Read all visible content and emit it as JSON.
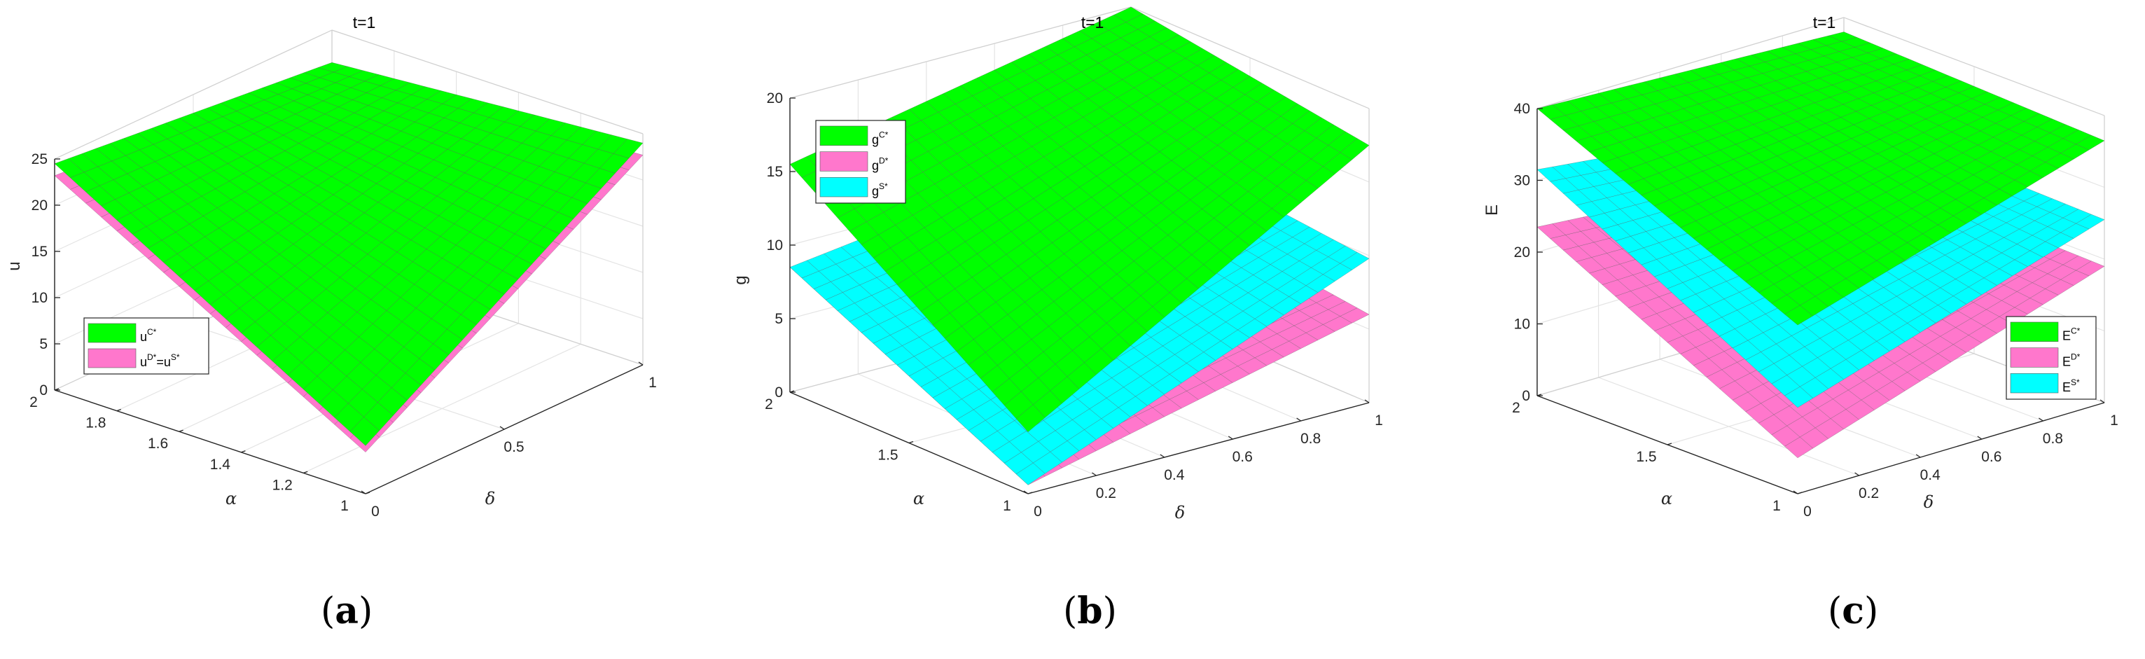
{
  "chart_data": [
    {
      "type": "surface",
      "caption": "(a)",
      "title": "t=1",
      "zlabel": "u",
      "ylabel": "α",
      "xlabel": "δ",
      "z_ticks": [
        "0",
        "5",
        "10",
        "15",
        "20",
        "25"
      ],
      "alpha_ticks": [
        "1",
        "1.2",
        "1.4",
        "1.6",
        "1.8",
        "2"
      ],
      "delta_ticks": [
        "0",
        "0.5",
        "1"
      ],
      "zlim": [
        0,
        25
      ],
      "alpha_range": [
        1,
        2
      ],
      "delta_range": [
        0,
        1
      ],
      "legend": {
        "position": "left-middle",
        "entries": [
          {
            "base": "u",
            "sup": "C*",
            "color": "#00ff00"
          },
          {
            "base": "u",
            "sup": "D*",
            "mid": "=u",
            "sup2": "S*",
            "color": "#ff77cc"
          }
        ]
      },
      "series": [
        {
          "name": "C",
          "color": "#00ff00",
          "corners": {
            "d0_a1": 5.2,
            "d1_a1": 24.0,
            "d0_a2": 24.5,
            "d1_a2": 21.5
          }
        },
        {
          "name": "D=S",
          "color": "#ff77cc",
          "corners": {
            "d0_a1": 4.5,
            "d1_a1": 22.7,
            "d0_a2": 23.2,
            "d1_a2": 20.8
          }
        }
      ]
    },
    {
      "type": "surface",
      "caption": "(b)",
      "title": "t=1",
      "zlabel": "g",
      "ylabel": "α",
      "xlabel": "δ",
      "z_ticks": [
        "0",
        "5",
        "10",
        "15",
        "20"
      ],
      "alpha_ticks": [
        "1",
        "1.5",
        "2"
      ],
      "delta_ticks": [
        "0",
        "0.2",
        "0.4",
        "0.6",
        "0.8",
        "1"
      ],
      "zlim": [
        0,
        20
      ],
      "alpha_range": [
        1,
        2
      ],
      "delta_range": [
        0,
        1
      ],
      "legend": {
        "position": "top-left",
        "entries": [
          {
            "base": "g",
            "sup": "C*",
            "color": "#00ff00"
          },
          {
            "base": "g",
            "sup": "D*",
            "color": "#ff77cc"
          },
          {
            "base": "g",
            "sup": "S*",
            "color": "#00ffff"
          }
        ]
      },
      "series": [
        {
          "name": "C",
          "color": "#00ff00",
          "corners": {
            "d0_a1": 4.2,
            "d1_a1": 17.5,
            "d0_a2": 15.5,
            "d1_a2": 20.0
          }
        },
        {
          "name": "S",
          "color": "#00ffff",
          "corners": {
            "d0_a1": 0.6,
            "d1_a1": 9.8,
            "d0_a2": 8.5,
            "d1_a2": 11.5
          }
        },
        {
          "name": "D",
          "color": "#ff77cc",
          "corners": {
            "d0_a1": 0.6,
            "d1_a1": 6.0,
            "d0_a2": 8.5,
            "d1_a2": 8.0
          }
        }
      ]
    },
    {
      "type": "surface",
      "caption": "(c)",
      "title": "t=1",
      "zlabel": "E",
      "ylabel": "α",
      "xlabel": "δ",
      "z_ticks": [
        "0",
        "10",
        "20",
        "30",
        "40"
      ],
      "alpha_ticks": [
        "1",
        "1.5",
        "2"
      ],
      "delta_ticks": [
        "0",
        "0.2",
        "0.4",
        "0.6",
        "0.8",
        "1"
      ],
      "zlim": [
        0,
        40
      ],
      "alpha_range": [
        1,
        2
      ],
      "delta_range": [
        0,
        1
      ],
      "legend": {
        "position": "bottom-right",
        "entries": [
          {
            "base": "E",
            "sup": "C*",
            "color": "#00ff00"
          },
          {
            "base": "E",
            "sup": "D*",
            "color": "#ff77cc"
          },
          {
            "base": "E",
            "sup": "S*",
            "color": "#00ffff"
          }
        ]
      },
      "series": [
        {
          "name": "C",
          "color": "#00ff00",
          "corners": {
            "d0_a1": 23.5,
            "d1_a1": 36.5,
            "d0_a2": 40.0,
            "d1_a2": 38.0
          }
        },
        {
          "name": "S",
          "color": "#00ffff",
          "corners": {
            "d0_a1": 12.0,
            "d1_a1": 25.5,
            "d0_a2": 31.5,
            "d1_a2": 26.5
          }
        },
        {
          "name": "D",
          "color": "#ff77cc",
          "corners": {
            "d0_a1": 5.0,
            "d1_a1": 19.0,
            "d0_a2": 23.5,
            "d1_a2": 20.0
          }
        }
      ]
    }
  ]
}
